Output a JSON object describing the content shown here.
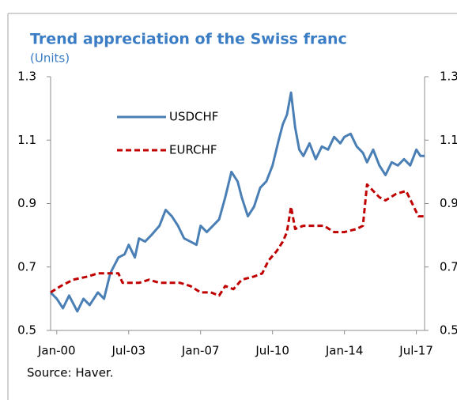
{
  "chart_data": {
    "type": "line",
    "title": "Trend appreciation  of the Swiss franc",
    "subtitle": "(Units)",
    "source": "Source: Haver.",
    "xlim": [
      1999.7,
      2017.9
    ],
    "xticks": [
      {
        "value": 2000,
        "label": "Jan-00"
      },
      {
        "value": 2003.5,
        "label": "Jul-03"
      },
      {
        "value": 2007,
        "label": "Jan-07"
      },
      {
        "value": 2010.5,
        "label": "Jul-10"
      },
      {
        "value": 2014,
        "label": "Jan-14"
      },
      {
        "value": 2017.5,
        "label": "Jul-17"
      }
    ],
    "ylim": [
      0.5,
      1.3
    ],
    "yticks": [
      0.5,
      0.7,
      0.9,
      1.1,
      1.3
    ],
    "y2lim": [
      0.5,
      1.3
    ],
    "y2ticks": [
      0.5,
      0.7,
      0.9,
      1.1,
      1.3
    ],
    "grid": false,
    "legend": "top-left",
    "series": [
      {
        "name": "USDCHF",
        "color": "#4a7fb5",
        "dash": false,
        "x": [
          1999.7,
          2000.0,
          2000.3,
          2000.6,
          2001.0,
          2001.3,
          2001.6,
          2002.0,
          2002.3,
          2002.6,
          2003.0,
          2003.3,
          2003.5,
          2003.8,
          2004.0,
          2004.3,
          2004.6,
          2005.0,
          2005.3,
          2005.6,
          2005.9,
          2006.2,
          2006.5,
          2006.8,
          2007.0,
          2007.3,
          2007.6,
          2007.9,
          2008.2,
          2008.5,
          2008.8,
          2009.0,
          2009.3,
          2009.6,
          2009.9,
          2010.2,
          2010.5,
          2010.8,
          2011.0,
          2011.2,
          2011.4,
          2011.6,
          2011.8,
          2012.0,
          2012.3,
          2012.6,
          2012.9,
          2013.2,
          2013.5,
          2013.8,
          2014.0,
          2014.3,
          2014.6,
          2014.9,
          2015.1,
          2015.4,
          2015.7,
          2016.0,
          2016.3,
          2016.6,
          2016.9,
          2017.2,
          2017.5,
          2017.7,
          2017.9
        ],
        "values": [
          0.62,
          0.6,
          0.57,
          0.61,
          0.56,
          0.6,
          0.58,
          0.62,
          0.6,
          0.68,
          0.73,
          0.74,
          0.77,
          0.73,
          0.79,
          0.78,
          0.8,
          0.83,
          0.88,
          0.86,
          0.83,
          0.79,
          0.78,
          0.77,
          0.83,
          0.81,
          0.83,
          0.85,
          0.92,
          1.0,
          0.97,
          0.92,
          0.86,
          0.89,
          0.95,
          0.97,
          1.02,
          1.1,
          1.15,
          1.18,
          1.25,
          1.14,
          1.07,
          1.05,
          1.09,
          1.04,
          1.08,
          1.07,
          1.11,
          1.09,
          1.11,
          1.12,
          1.08,
          1.06,
          1.03,
          1.07,
          1.02,
          0.99,
          1.03,
          1.02,
          1.04,
          1.02,
          1.07,
          1.05,
          1.05
        ]
      },
      {
        "name": "EURCHF",
        "color": "#c00000",
        "dash": true,
        "x": [
          1999.7,
          2000.2,
          2000.8,
          2001.5,
          2002.0,
          2002.5,
          2003.0,
          2003.2,
          2004.0,
          2004.5,
          2005.0,
          2006.0,
          2006.5,
          2007.0,
          2007.5,
          2007.9,
          2008.2,
          2008.6,
          2009.0,
          2009.6,
          2010.0,
          2010.3,
          2010.7,
          2011.0,
          2011.2,
          2011.4,
          2011.6,
          2012.0,
          2013.0,
          2013.5,
          2014.0,
          2014.6,
          2014.9,
          2015.1,
          2015.4,
          2015.7,
          2016.0,
          2016.5,
          2017.0,
          2017.3,
          2017.6,
          2017.9
        ],
        "values": [
          0.62,
          0.64,
          0.66,
          0.67,
          0.68,
          0.68,
          0.68,
          0.65,
          0.65,
          0.66,
          0.65,
          0.65,
          0.64,
          0.62,
          0.62,
          0.61,
          0.64,
          0.63,
          0.66,
          0.67,
          0.68,
          0.72,
          0.75,
          0.78,
          0.81,
          0.89,
          0.82,
          0.83,
          0.83,
          0.81,
          0.81,
          0.82,
          0.83,
          0.96,
          0.94,
          0.92,
          0.91,
          0.93,
          0.94,
          0.9,
          0.86,
          0.86
        ]
      }
    ]
  }
}
